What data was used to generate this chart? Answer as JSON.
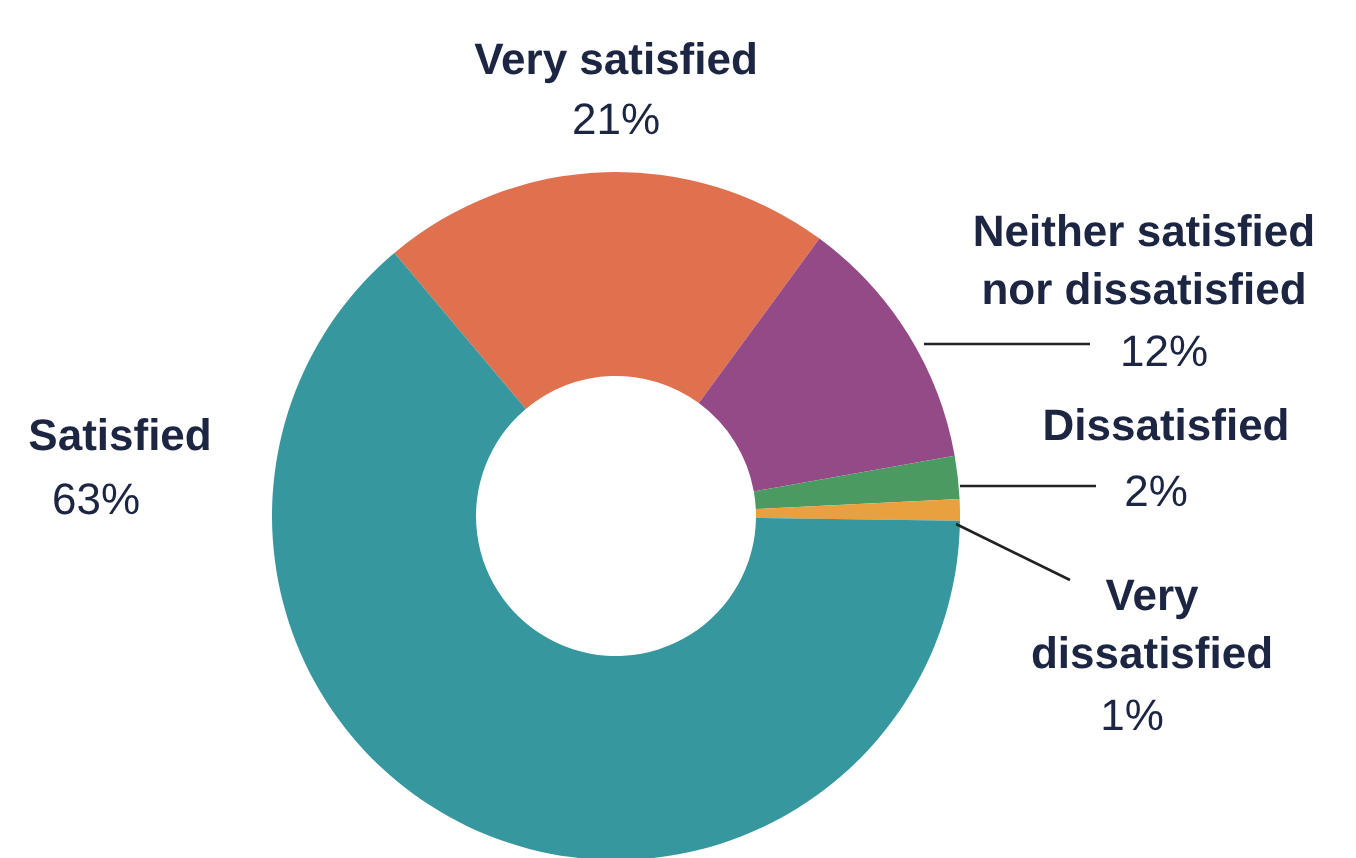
{
  "chart_data": {
    "type": "donut",
    "categories": [
      "Very satisfied",
      "Neither satisfied nor dissatisfied",
      "Dissatisfied",
      "Very dissatisfied",
      "Satisfied"
    ],
    "values": [
      21,
      12,
      2,
      1,
      63
    ],
    "value_labels": [
      "21%",
      "12%",
      "2%",
      "1%",
      "63%"
    ],
    "colors": [
      "#e0714f",
      "#934a87",
      "#4b9a62",
      "#e9a03e",
      "#37979e"
    ]
  }
}
